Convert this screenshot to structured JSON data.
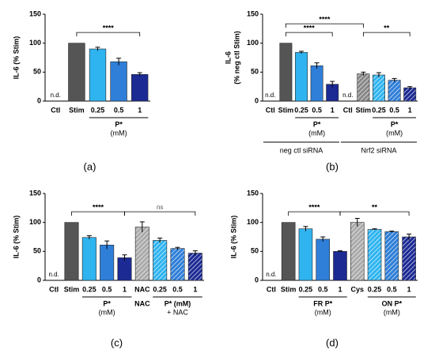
{
  "chart_data": [
    {
      "type": "bar",
      "panel": "(a)",
      "ylabel": [
        "IL-6 (% Stim)"
      ],
      "categories": [
        "Ctl",
        "Stim",
        "0.25",
        "0.5",
        "1"
      ],
      "values": [
        null,
        100,
        90,
        68,
        46
      ],
      "errors": [
        null,
        0,
        3,
        6,
        3
      ],
      "value_labels": [
        "n.d.",
        null,
        null,
        null,
        null
      ],
      "colors": [
        "#555555",
        "#555555",
        "#2fb4f0",
        "#2f7fd8",
        "#1c2a94"
      ],
      "hatch": [
        false,
        false,
        false,
        false,
        false
      ],
      "ylim": [
        0,
        150
      ],
      "yticks": [
        0,
        50,
        100,
        150
      ],
      "groups": [
        {
          "lines": [
            "P*",
            "(mM)"
          ],
          "span": [
            2,
            4
          ]
        }
      ],
      "significance": [
        {
          "label": "****",
          "span": [
            1,
            4
          ]
        }
      ]
    },
    {
      "type": "bar",
      "panel": "(b)",
      "ylabel": [
        "IL-6",
        "(% neg ctl Stim)"
      ],
      "categories": [
        "Ctl",
        "Stim",
        "0.25",
        "0.5",
        "1",
        "Ctl",
        "Stim",
        "0.25",
        "0.5",
        "1"
      ],
      "values": [
        null,
        100,
        84,
        61,
        29,
        null,
        47,
        45,
        36,
        23
      ],
      "errors": [
        null,
        0,
        2,
        5,
        5,
        null,
        3,
        4,
        3,
        2
      ],
      "value_labels": [
        "n.d.",
        null,
        null,
        null,
        null,
        "n.d.",
        null,
        null,
        null,
        null
      ],
      "colors": [
        "#555555",
        "#555555",
        "#2fb4f0",
        "#2f7fd8",
        "#1c2a94",
        "#888888",
        "#888888",
        "#2fb4f0",
        "#2f7fd8",
        "#1c2a94"
      ],
      "hatch": [
        false,
        false,
        false,
        false,
        false,
        true,
        true,
        true,
        true,
        true
      ],
      "ylim": [
        0,
        150
      ],
      "yticks": [
        0,
        50,
        100,
        150
      ],
      "groups": [
        {
          "lines": [
            "P*",
            "(mM)"
          ],
          "span": [
            2,
            4
          ]
        },
        {
          "lines": [
            "P*",
            "(mM)"
          ],
          "span": [
            7,
            9
          ]
        }
      ],
      "conditions": [
        {
          "label": "neg ctl siRNA",
          "span": [
            0,
            4
          ]
        },
        {
          "label": "Nrf2 siRNA",
          "span": [
            5,
            9
          ]
        }
      ],
      "significance": [
        {
          "label": "****",
          "span": [
            1,
            4
          ]
        },
        {
          "label": "**",
          "span": [
            6,
            9
          ]
        },
        {
          "label": "****",
          "span": [
            1,
            6
          ]
        }
      ]
    },
    {
      "type": "bar",
      "panel": "(c)",
      "ylabel": [
        "IL-6 (% Stim)"
      ],
      "categories": [
        "Ctl",
        "Stim",
        "0.25",
        "0.5",
        "1",
        "NAC",
        "0.25",
        "0.5",
        "1"
      ],
      "values": [
        null,
        100,
        74,
        61,
        39,
        92,
        69,
        55,
        47
      ],
      "errors": [
        null,
        0,
        3,
        7,
        5,
        9,
        4,
        2,
        4
      ],
      "value_labels": [
        "n.d.",
        null,
        null,
        null,
        null,
        null,
        null,
        null,
        null
      ],
      "colors": [
        "#555555",
        "#555555",
        "#2fb4f0",
        "#2f7fd8",
        "#1c2a94",
        "#aaaaaa",
        "#2fb4f0",
        "#2f7fd8",
        "#1c2a94"
      ],
      "hatch": [
        false,
        false,
        false,
        false,
        false,
        true,
        true,
        true,
        true
      ],
      "ylim": [
        0,
        150
      ],
      "yticks": [
        0,
        50,
        100,
        150
      ],
      "groups": [
        {
          "lines": [
            "P*",
            "(mM)"
          ],
          "span": [
            2,
            4
          ]
        },
        {
          "lines": [
            "NAC"
          ],
          "span": [
            5,
            5
          ]
        },
        {
          "lines": [
            "P* (mM)",
            "+ NAC"
          ],
          "span": [
            6,
            8
          ]
        }
      ],
      "significance": [
        {
          "label": "****",
          "span": [
            1,
            4
          ]
        },
        {
          "label": "ns",
          "span": [
            4,
            8
          ]
        }
      ]
    },
    {
      "type": "bar",
      "panel": "(d)",
      "ylabel": [
        "IL-6 (% Stim)"
      ],
      "categories": [
        "Ctl",
        "Stim",
        "0.25",
        "0.5",
        "1",
        "Cys",
        "0.25",
        "0.5",
        "1"
      ],
      "values": [
        null,
        100,
        89,
        71,
        50,
        100,
        88,
        84,
        75
      ],
      "errors": [
        null,
        0,
        4,
        4,
        1,
        7,
        1,
        1,
        5
      ],
      "value_labels": [
        "n.d.",
        null,
        null,
        null,
        null,
        null,
        null,
        null,
        null
      ],
      "colors": [
        "#555555",
        "#555555",
        "#2fb4f0",
        "#2f7fd8",
        "#1c2a94",
        "#aaaaaa",
        "#2fb4f0",
        "#2f7fd8",
        "#1c2a94"
      ],
      "hatch": [
        false,
        false,
        false,
        false,
        false,
        true,
        true,
        true,
        true
      ],
      "ylim": [
        0,
        150
      ],
      "yticks": [
        0,
        50,
        100,
        150
      ],
      "groups": [
        {
          "lines": [
            "FR P*",
            "(mM)"
          ],
          "span": [
            2,
            4
          ]
        },
        {
          "lines": [
            "ON P*",
            "(mM)"
          ],
          "span": [
            6,
            8
          ]
        }
      ],
      "significance": [
        {
          "label": "****",
          "span": [
            1,
            4
          ]
        },
        {
          "label": "**",
          "span": [
            4,
            8
          ]
        }
      ]
    }
  ]
}
